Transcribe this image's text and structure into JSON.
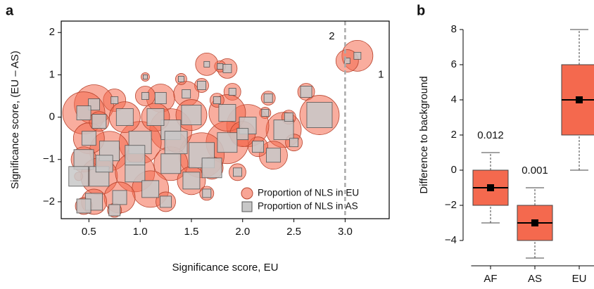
{
  "chart_data": [
    {
      "type": "scatter",
      "panel_label": "a",
      "xlabel": "Significance score, EU",
      "ylabel": "Significance score, (EU – AS)",
      "xlim": [
        0.23,
        3.43
      ],
      "ylim": [
        -2.4,
        2.27
      ],
      "xticks": [
        0.5,
        {
          "value": 1,
          "label": "1.0"
        },
        1.5,
        {
          "value": 2,
          "label": "2.0"
        },
        2.5,
        {
          "value": 3,
          "label": "3.0"
        }
      ],
      "yticks": [
        {
          "value": -2,
          "label": "−2"
        },
        {
          "value": -1,
          "label": "−1"
        },
        0,
        1,
        2
      ],
      "vline": 3,
      "legend": "lower right",
      "annotations": [
        {
          "text": "1",
          "x": 3.35,
          "y": 1.0
        },
        {
          "text": "2",
          "x": 2.87,
          "y": 1.9
        }
      ],
      "x": [
        3.12,
        3.02,
        2.62,
        2.75,
        2.25,
        2.22,
        2.4,
        2.05,
        1.85,
        1.78,
        1.65,
        1.9,
        1.6,
        1.45,
        1.2,
        1.05,
        0.75,
        0.55,
        0.45,
        1.85,
        1.6,
        1.3,
        1.0,
        0.7,
        0.5,
        0.45,
        0.6,
        0.95,
        1.3,
        1.5,
        1.1,
        0.8,
        0.55,
        0.45,
        0.75,
        1.25,
        1.65,
        2.3,
        2.15,
        2.5,
        1.85,
        1.5,
        1.15,
        0.85,
        0.6,
        0.4,
        1.95,
        2.0,
        1.4,
        1.05,
        1.75,
        2.45,
        0.95,
        1.35,
        0.65,
        1.7
      ],
      "y": [
        1.45,
        1.33,
        0.6,
        0.05,
        0.45,
        0.1,
        -0.3,
        -0.2,
        1.15,
        1.2,
        1.25,
        0.6,
        0.75,
        0.55,
        0.45,
        0.5,
        0.4,
        0.3,
        0.1,
        -0.6,
        -0.9,
        -0.3,
        -0.6,
        -0.8,
        -0.5,
        -1.0,
        -1.4,
        -1.3,
        -1.1,
        -1.5,
        -1.7,
        -1.9,
        -2.0,
        -2.1,
        -2.2,
        -2.0,
        -1.8,
        -0.9,
        -0.7,
        -0.6,
        0.1,
        0.05,
        0.0,
        0.0,
        -0.1,
        -1.4,
        -1.3,
        -0.4,
        0.9,
        0.95,
        0.4,
        0.0,
        -0.9,
        -0.6,
        -1.1,
        -1.2
      ],
      "series": [
        {
          "name": "Proportion of NLS in EU",
          "marker": "circle",
          "color": "#f4694e",
          "sizes": [
            22,
            16,
            12,
            28,
            10,
            8,
            25,
            30,
            14,
            8,
            16,
            12,
            10,
            18,
            20,
            14,
            16,
            28,
            30,
            30,
            32,
            30,
            30,
            28,
            22,
            18,
            26,
            28,
            24,
            20,
            26,
            22,
            18,
            12,
            10,
            14,
            10,
            20,
            14,
            12,
            26,
            22,
            20,
            22,
            14,
            6,
            12,
            18,
            8,
            6,
            10,
            10,
            12,
            14,
            10,
            16
          ]
        },
        {
          "name": "Proportion of NLS in AS",
          "marker": "square",
          "color": "#c8c8c8",
          "sizes": [
            5,
            4,
            8,
            18,
            6,
            5,
            14,
            12,
            6,
            4,
            4,
            5,
            6,
            6,
            8,
            5,
            5,
            8,
            10,
            14,
            18,
            14,
            16,
            14,
            10,
            14,
            14,
            14,
            14,
            12,
            12,
            10,
            12,
            10,
            8,
            8,
            6,
            10,
            8,
            6,
            12,
            14,
            12,
            12,
            10,
            14,
            6,
            8,
            4,
            3,
            5,
            6,
            14,
            16,
            12,
            14
          ]
        }
      ]
    },
    {
      "type": "box",
      "panel_label": "b",
      "ylabel": "Difference to background",
      "ylim": [
        -5.44,
        8.48
      ],
      "yticks": [
        {
          "value": -4,
          "label": "−4"
        },
        {
          "value": -2,
          "label": "−2"
        },
        0,
        2,
        4,
        6,
        8
      ],
      "categories": [
        "AF",
        "AS",
        "EU"
      ],
      "color": "#f4694e",
      "min": [
        -3,
        -5,
        0
      ],
      "q1": [
        -2,
        -4,
        2
      ],
      "median": [
        -1,
        -3,
        4
      ],
      "q3": [
        0,
        -2,
        6
      ],
      "max": [
        1,
        -1,
        8
      ],
      "mean": [
        -1,
        -3,
        4
      ],
      "p_values": [
        "0.012",
        "0.001",
        null
      ]
    }
  ]
}
